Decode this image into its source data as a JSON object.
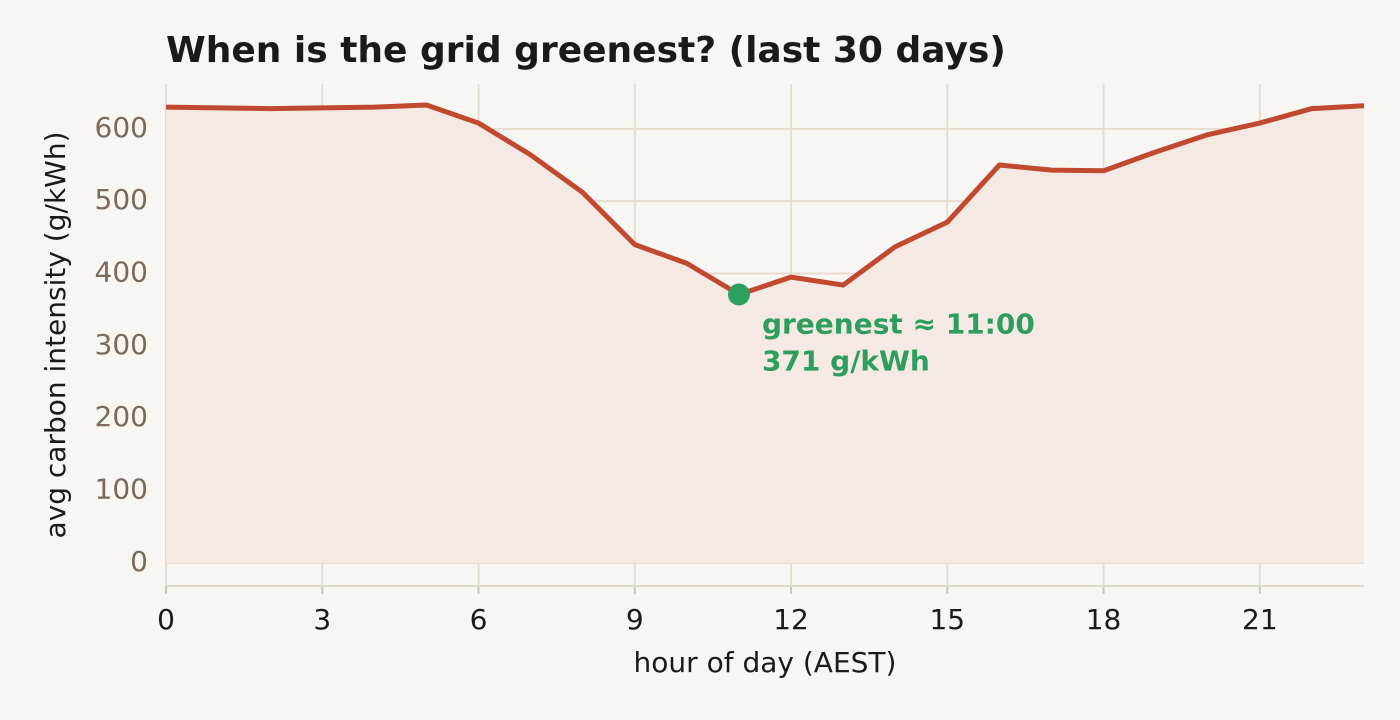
{
  "chart_data": {
    "type": "line",
    "title": "When is the grid greenest? (last 30 days)",
    "x_label": "hour of day (AEST)",
    "y_label": "avg carbon intensity (g/kWh)",
    "x": [
      0,
      1,
      2,
      3,
      4,
      5,
      6,
      7,
      8,
      9,
      10,
      11,
      12,
      13,
      14,
      15,
      16,
      17,
      18,
      19,
      20,
      21,
      22,
      23
    ],
    "series": [
      {
        "name": "avg carbon intensity",
        "color": "#c0492f",
        "fill": "#f5e9e3",
        "values": [
          630,
          629,
          628,
          629,
          630,
          633,
          608,
          564,
          512,
          440,
          414,
          371,
          395,
          384,
          437,
          471,
          550,
          543,
          542,
          568,
          592,
          608,
          628,
          632
        ]
      }
    ],
    "xlim": [
      0,
      23
    ],
    "xticks": [
      0,
      3,
      6,
      9,
      12,
      15,
      18,
      21
    ],
    "ylim": [
      -32,
      662
    ],
    "yticks": [
      0,
      100,
      200,
      300,
      400,
      500,
      600
    ],
    "grid": true,
    "annotation": {
      "x": 11,
      "color": "#2e9e5e",
      "lines": [
        "greenest ≈ 11:00",
        "371 g/kWh"
      ]
    }
  }
}
